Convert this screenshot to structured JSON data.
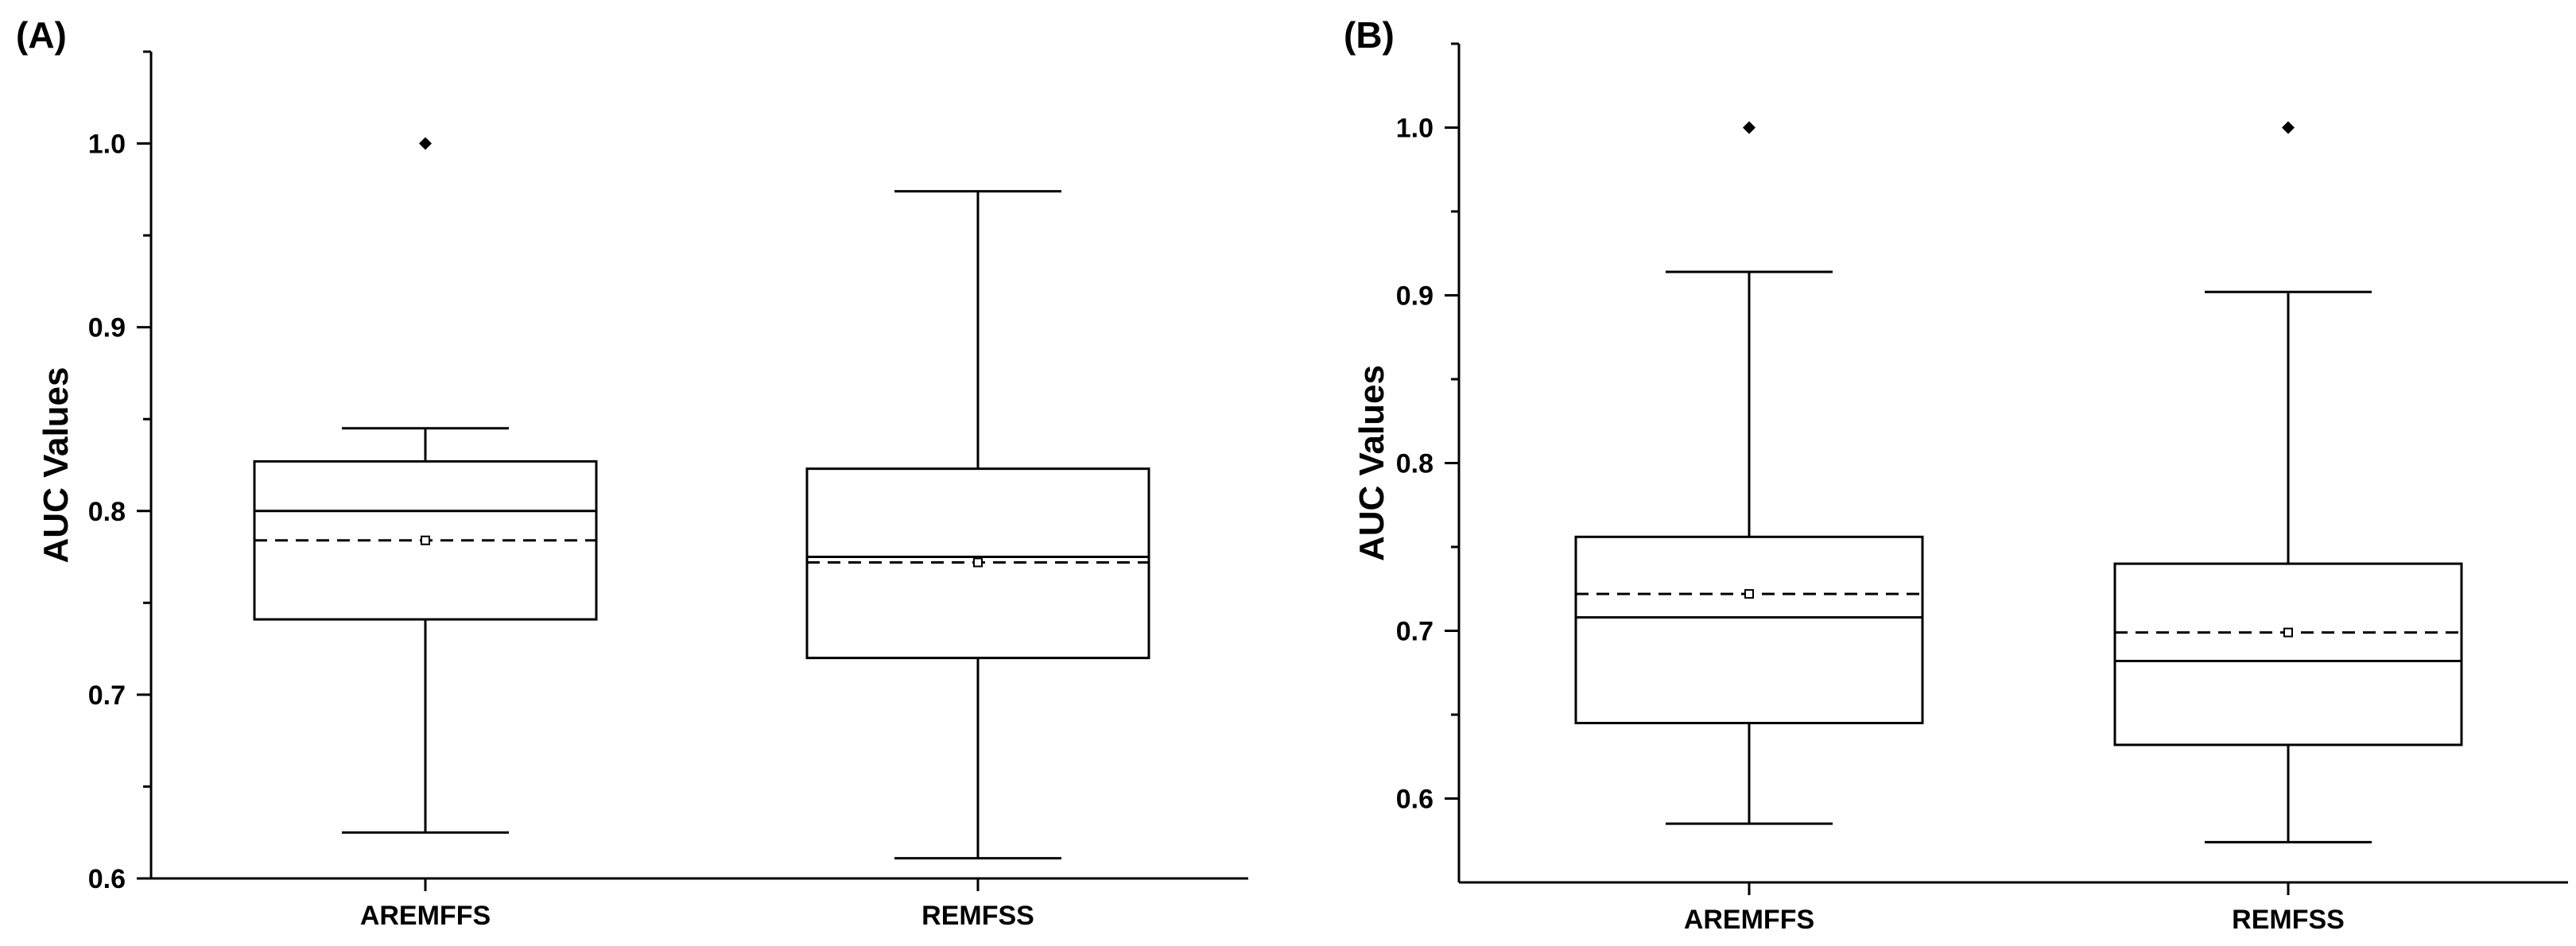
{
  "chart_data": [
    {
      "panel_label": "(A)",
      "type": "box",
      "ylabel": "AUC Values",
      "xlabel": "",
      "ylim": [
        0.6,
        1.05
      ],
      "yticks": [
        "0.6",
        "0.7",
        "0.8",
        "0.9",
        "1.0"
      ],
      "categories": [
        "AREMFFS",
        "REMFSS"
      ],
      "boxes": [
        {
          "category": "AREMFFS",
          "whisker_low": 0.625,
          "q1": 0.741,
          "median": 0.8,
          "q3": 0.827,
          "whisker_high": 0.845,
          "mean": 0.784,
          "outliers": [
            1.0
          ]
        },
        {
          "category": "REMFSS",
          "whisker_low": 0.611,
          "q1": 0.72,
          "median": 0.775,
          "q3": 0.823,
          "whisker_high": 0.974,
          "mean": 0.772,
          "outliers": []
        }
      ],
      "grid": false
    },
    {
      "panel_label": "(B)",
      "type": "box",
      "ylabel": "AUC Values",
      "xlabel": "",
      "ylim": [
        0.55,
        1.05
      ],
      "yticks": [
        "0.6",
        "0.7",
        "0.8",
        "0.9",
        "1.0"
      ],
      "categories": [
        "AREMFFS",
        "REMFSS"
      ],
      "boxes": [
        {
          "category": "AREMFFS",
          "whisker_low": 0.585,
          "q1": 0.645,
          "median": 0.708,
          "q3": 0.756,
          "whisker_high": 0.914,
          "mean": 0.722,
          "outliers": [
            1.0
          ]
        },
        {
          "category": "REMFSS",
          "whisker_low": 0.574,
          "q1": 0.632,
          "median": 0.682,
          "q3": 0.74,
          "whisker_high": 0.902,
          "mean": 0.699,
          "outliers": [
            1.0
          ]
        }
      ],
      "grid": false
    }
  ]
}
